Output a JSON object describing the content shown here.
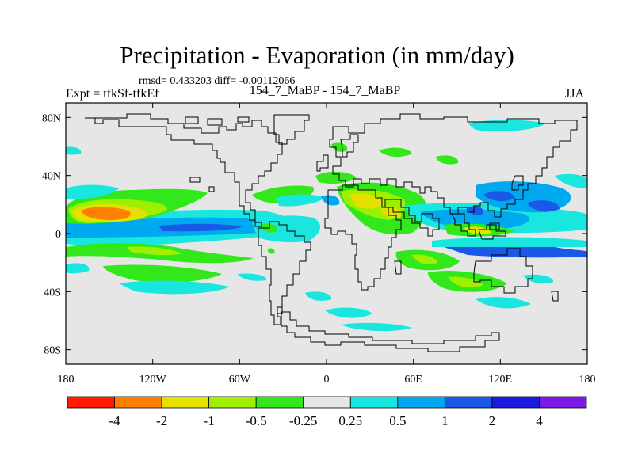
{
  "header": {
    "title": "Precipitation - Evaporation (in mm/day)",
    "stats": "rmsd= 0.433203 diff= -0.00112066",
    "expt": "Expt = tfkSf-tfkEf",
    "runs": "154_7_MaBP - 154_7_MaBP",
    "season": "JJA"
  },
  "axes": {
    "lat_ticks": [
      {
        "label": "80N",
        "value": 80
      },
      {
        "label": "40N",
        "value": 40
      },
      {
        "label": "0",
        "value": 0
      },
      {
        "label": "40S",
        "value": -40
      },
      {
        "label": "80S",
        "value": -80
      }
    ],
    "lon_ticks": [
      {
        "label": "180",
        "value": -180
      },
      {
        "label": "120W",
        "value": -120
      },
      {
        "label": "60W",
        "value": -60
      },
      {
        "label": "0",
        "value": 0
      },
      {
        "label": "60E",
        "value": 60
      },
      {
        "label": "120E",
        "value": 120
      },
      {
        "label": "180",
        "value": 180
      }
    ]
  },
  "colorbar": {
    "colors": [
      "#ff1a00",
      "#ff8000",
      "#e5e000",
      "#9ef000",
      "#33e81a",
      "#e6e6e6",
      "#1ae6e0",
      "#00a8f0",
      "#1a58e8",
      "#1a1ae0",
      "#7a1ae6"
    ],
    "labels": [
      "-4",
      "-2",
      "-1",
      "-0.5",
      "-0.25",
      "0.25",
      "0.5",
      "1",
      "2",
      "4"
    ]
  }
}
